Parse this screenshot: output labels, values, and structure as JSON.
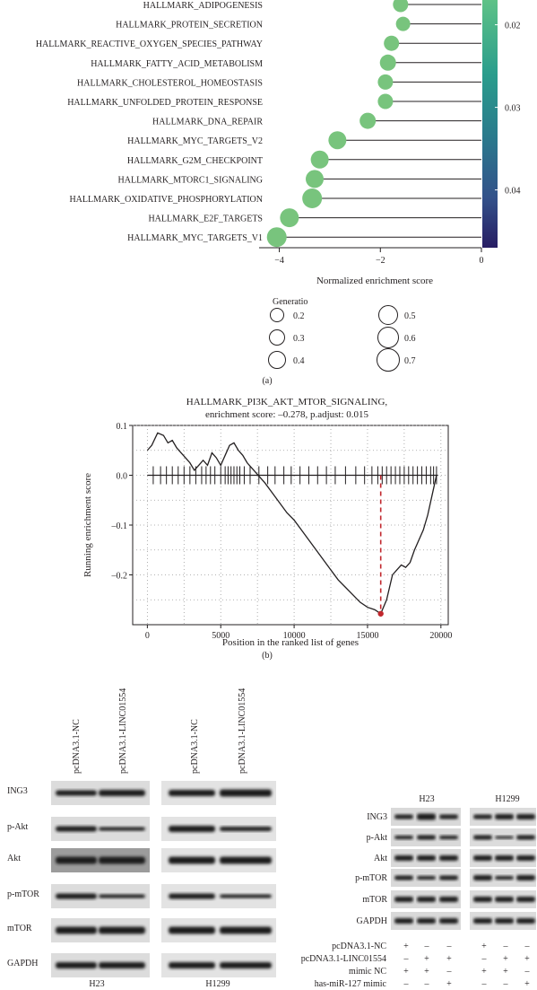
{
  "figure": {
    "panel_a_label": "(a)",
    "panel_b_label": "(b)"
  },
  "panel_a": {
    "xlabel": "Normalized enrichment score",
    "x_ticks": [
      "-4",
      "-2",
      "0"
    ],
    "colorbar_ticks": [
      "0.02",
      "0.03",
      "0.04"
    ],
    "size_legend_title": "Generatio",
    "size_legend": [
      "0.2",
      "0.3",
      "0.4",
      "0.5",
      "0.6",
      "0.7"
    ]
  },
  "panel_b": {
    "title_line1": "HALLMARK_PI3K_AKT_MTOR_SIGNALING,",
    "title_line2": "enrichment score: –0.278, p.adjust: 0.015",
    "xlabel": "Position in the ranked list of genes",
    "ylabel": "Running enrichment score",
    "x_ticks": [
      "0",
      "5000",
      "10000",
      "15000",
      "20000"
    ],
    "y_ticks": [
      "0.1",
      "0.0",
      "–0.1",
      "–0.2"
    ]
  },
  "panel_c": {
    "left": {
      "columns": [
        "pcDNA3.1-NC",
        "pcDNA3.1-LINC01554",
        "pcDNA3.1-NC",
        "pcDNA3.1-LINC01554"
      ],
      "rows": [
        "ING3",
        "p-Akt",
        "Akt",
        "p-mTOR",
        "mTOR",
        "GAPDH"
      ],
      "groups": [
        "H23",
        "H1299"
      ]
    },
    "right": {
      "groups": [
        "H23",
        "H1299"
      ],
      "rows": [
        "ING3",
        "p-Akt",
        "Akt",
        "p-mTOR",
        "mTOR",
        "GAPDH"
      ],
      "conditions": [
        {
          "label": "pcDNA3.1-NC",
          "marks": [
            "+",
            "–",
            "–",
            "+",
            "–",
            "–"
          ]
        },
        {
          "label": "pcDNA3.1-LINC01554",
          "marks": [
            "–",
            "+",
            "+",
            "–",
            "+",
            "+"
          ]
        },
        {
          "label": "mimic NC",
          "marks": [
            "+",
            "+",
            "–",
            "+",
            "+",
            "–"
          ]
        },
        {
          "label": "has-miR-127 mimic",
          "marks": [
            "–",
            "–",
            "+",
            "–",
            "–",
            "+"
          ]
        }
      ]
    }
  },
  "chart_data": [
    {
      "type": "scatter",
      "xlabel": "Normalized enrichment score",
      "xlim": [
        -4.4,
        0
      ],
      "size_legend_title": "Generatio",
      "colorbar_range": [
        0.017,
        0.047
      ],
      "categories": [
        "HALLMARK_ADIPOGENESIS",
        "HALLMARK_PROTEIN_SECRETION",
        "HALLMARK_REACTIVE_OXYGEN_SPECIES_PATHWAY",
        "HALLMARK_FATTY_ACID_METABOLISM",
        "HALLMARK_CHOLESTEROL_HOMEOSTASIS",
        "HALLMARK_UNFOLDED_PROTEIN_RESPONSE",
        "HALLMARK_DNA_REPAIR",
        "HALLMARK_MYC_TARGETS_V2",
        "HALLMARK_G2M_CHECKPOINT",
        "HALLMARK_MTORC1_SIGNALING",
        "HALLMARK_OXIDATIVE_PHOSPHORYLATION",
        "HALLMARK_E2F_TARGETS",
        "HALLMARK_MYC_TARGETS_V1"
      ],
      "values": [
        -1.6,
        -1.55,
        -1.78,
        -1.85,
        -1.9,
        -1.9,
        -2.25,
        -2.85,
        -3.2,
        -3.3,
        -3.35,
        -3.8,
        -4.05
      ],
      "generatio": [
        0.3,
        0.25,
        0.3,
        0.35,
        0.3,
        0.3,
        0.35,
        0.45,
        0.45,
        0.45,
        0.55,
        0.5,
        0.55
      ],
      "color_value": [
        0.019,
        0.019,
        0.02,
        0.019,
        0.019,
        0.019,
        0.019,
        0.019,
        0.019,
        0.019,
        0.019,
        0.019,
        0.019
      ],
      "color": "#78c47d"
    },
    {
      "type": "line",
      "title": "HALLMARK_PI3K_AKT_MTOR_SIGNALING, enrichment score: –0.278, p.adjust: 0.015",
      "xlabel": "Position in the ranked list of genes",
      "ylabel": "Running enrichment score",
      "xlim": [
        -1000,
        20500
      ],
      "ylim": [
        -0.3,
        0.1
      ],
      "grid": true,
      "x": [
        0,
        300,
        700,
        1100,
        1400,
        1700,
        2000,
        2300,
        2600,
        2900,
        3200,
        3500,
        3800,
        4100,
        4400,
        4700,
        5000,
        5300,
        5600,
        5900,
        6200,
        6500,
        6800,
        7100,
        7400,
        7700,
        8000,
        8500,
        9000,
        9500,
        10000,
        10500,
        11000,
        11500,
        12000,
        12500,
        13000,
        13500,
        14000,
        14500,
        15000,
        15500,
        15900,
        16300,
        16700,
        17000,
        17300,
        17600,
        17900,
        18200,
        18500,
        18800,
        19100,
        19400,
        19700
      ],
      "y": [
        0.05,
        0.06,
        0.085,
        0.08,
        0.065,
        0.07,
        0.055,
        0.045,
        0.035,
        0.025,
        0.01,
        0.02,
        0.03,
        0.02,
        0.045,
        0.035,
        0.02,
        0.04,
        0.06,
        0.065,
        0.05,
        0.04,
        0.025,
        0.015,
        0.005,
        -0.005,
        -0.015,
        -0.035,
        -0.055,
        -0.075,
        -0.09,
        -0.11,
        -0.13,
        -0.15,
        -0.17,
        -0.19,
        -0.21,
        -0.225,
        -0.24,
        -0.255,
        -0.265,
        -0.27,
        -0.278,
        -0.25,
        -0.2,
        -0.19,
        -0.18,
        -0.185,
        -0.175,
        -0.15,
        -0.13,
        -0.11,
        -0.08,
        -0.04,
        0.0
      ],
      "min_point": {
        "x": 15900,
        "y": -0.278
      },
      "hits": [
        400,
        900,
        1300,
        1700,
        2100,
        2500,
        2900,
        3300,
        3700,
        4000,
        4300,
        4600,
        5000,
        5300,
        5500,
        5700,
        5900,
        6100,
        6300,
        6600,
        7000,
        7600,
        8200,
        8700,
        9300,
        9800,
        10400,
        11000,
        11600,
        12200,
        12800,
        13500,
        14200,
        14800,
        15300,
        15700,
        16000,
        16300,
        16600,
        16900,
        17200,
        17500,
        17800,
        18100,
        18400,
        18700,
        19000,
        19300,
        19500,
        19700
      ]
    }
  ]
}
